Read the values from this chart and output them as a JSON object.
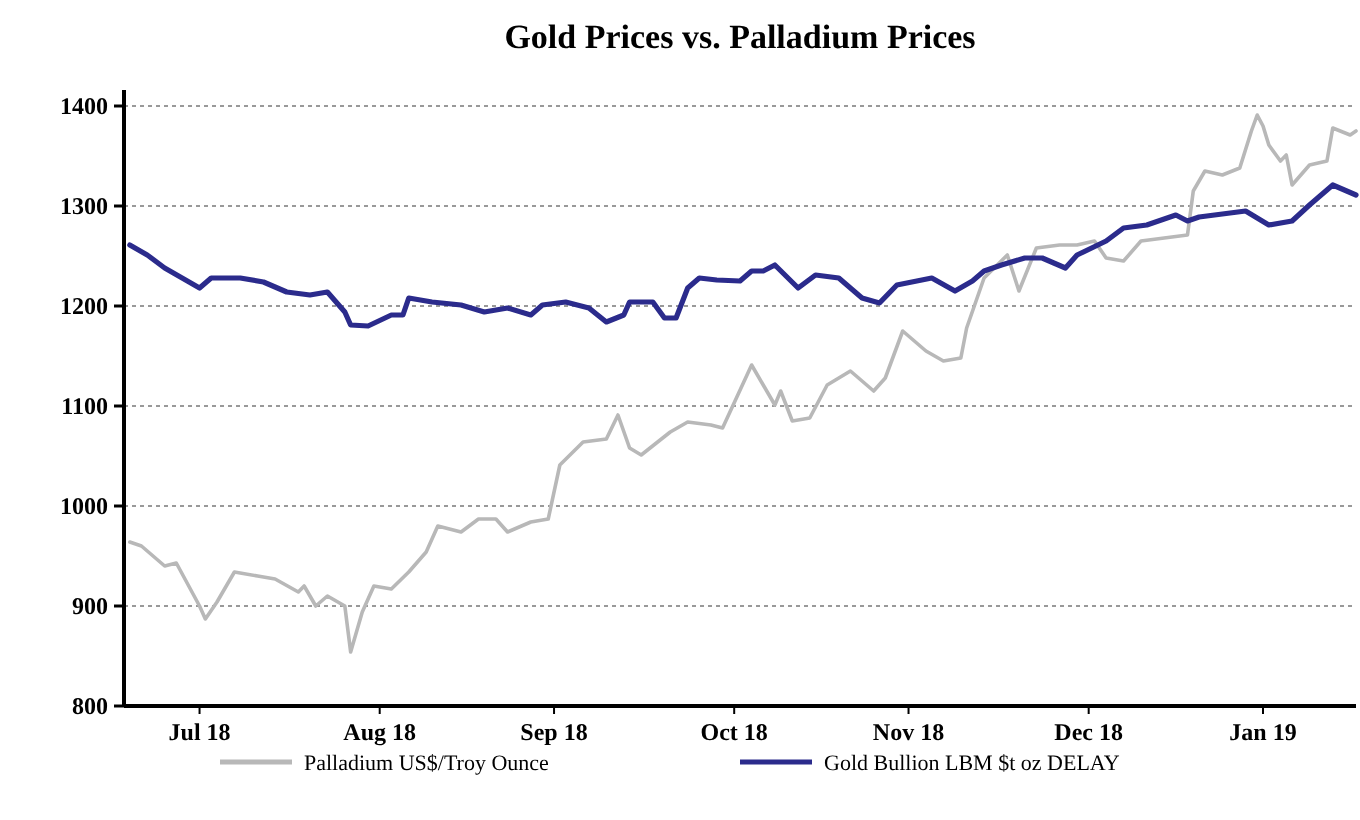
{
  "chart_data": {
    "type": "line",
    "title": "Gold Prices vs. Palladium Prices",
    "xlim": [
      "2018-07-03",
      "2019-01-31"
    ],
    "ylim": [
      800,
      1400
    ],
    "yticks": [
      800,
      900,
      1000,
      1100,
      1200,
      1300,
      1400
    ],
    "xticks": [
      {
        "value": "2018-07-16",
        "label": "Jul 18"
      },
      {
        "value": "2018-08-16",
        "label": "Aug 18"
      },
      {
        "value": "2018-09-15",
        "label": "Sep 18"
      },
      {
        "value": "2018-10-16",
        "label": "Oct 18"
      },
      {
        "value": "2018-11-15",
        "label": "Nov 18"
      },
      {
        "value": "2018-12-16",
        "label": "Dec 18"
      },
      {
        "value": "2019-01-15",
        "label": "Jan 19"
      }
    ],
    "grid": "y",
    "legend": "bottom",
    "line_style": "solid",
    "series": [
      {
        "name": "Palladium US$/Troy Ounce",
        "color": "#b8b8b8",
        "x": [
          "2018-07-04",
          "2018-07-06",
          "2018-07-10",
          "2018-07-12",
          "2018-07-16",
          "2018-07-17",
          "2018-07-19",
          "2018-07-22",
          "2018-07-26",
          "2018-07-29",
          "2018-08-02",
          "2018-08-03",
          "2018-08-05",
          "2018-08-07",
          "2018-08-10",
          "2018-08-11",
          "2018-08-13",
          "2018-08-15",
          "2018-08-18",
          "2018-08-21",
          "2018-08-24",
          "2018-08-26",
          "2018-08-30",
          "2018-09-02",
          "2018-09-05",
          "2018-09-07",
          "2018-09-11",
          "2018-09-14",
          "2018-09-16",
          "2018-09-20",
          "2018-09-24",
          "2018-09-26",
          "2018-09-28",
          "2018-09-30",
          "2018-10-05",
          "2018-10-08",
          "2018-10-12",
          "2018-10-14",
          "2018-10-19",
          "2018-10-23",
          "2018-10-24",
          "2018-10-26",
          "2018-10-29",
          "2018-11-01",
          "2018-11-05",
          "2018-11-09",
          "2018-11-11",
          "2018-11-14",
          "2018-11-18",
          "2018-11-21",
          "2018-11-24",
          "2018-11-25",
          "2018-11-28",
          "2018-12-02",
          "2018-12-04",
          "2018-12-07",
          "2018-12-11",
          "2018-12-14",
          "2018-12-17",
          "2018-12-19",
          "2018-12-22",
          "2018-12-25",
          "2018-12-29",
          "2019-01-02",
          "2019-01-03",
          "2019-01-05",
          "2019-01-08",
          "2019-01-11",
          "2019-01-13",
          "2019-01-14",
          "2019-01-15",
          "2019-01-16",
          "2019-01-18",
          "2019-01-19",
          "2019-01-20",
          "2019-01-23",
          "2019-01-26",
          "2019-01-27",
          "2019-01-30",
          "2019-01-31"
        ],
        "values": [
          964,
          960,
          940,
          943,
          900,
          887,
          904,
          934,
          930,
          927,
          914,
          920,
          900,
          910,
          900,
          854,
          894,
          920,
          917,
          934,
          954,
          980,
          974,
          987,
          987,
          974,
          984,
          987,
          1041,
          1064,
          1067,
          1091,
          1058,
          1051,
          1074,
          1084,
          1081,
          1078,
          1141,
          1101,
          1115,
          1085,
          1088,
          1121,
          1135,
          1115,
          1128,
          1175,
          1155,
          1145,
          1148,
          1178,
          1228,
          1251,
          1215,
          1258,
          1261,
          1261,
          1265,
          1248,
          1245,
          1265,
          1268,
          1271,
          1315,
          1335,
          1331,
          1338,
          1375,
          1391,
          1380,
          1361,
          1345,
          1351,
          1321,
          1341,
          1345,
          1378,
          1371,
          1375
        ]
      },
      {
        "name": "Gold Bullion LBM $t oz DELAY",
        "color": "#2b2b8c",
        "x": [
          "2018-07-04",
          "2018-07-07",
          "2018-07-10",
          "2018-07-13",
          "2018-07-16",
          "2018-07-18",
          "2018-07-23",
          "2018-07-27",
          "2018-07-31",
          "2018-08-04",
          "2018-08-07",
          "2018-08-10",
          "2018-08-11",
          "2018-08-14",
          "2018-08-18",
          "2018-08-20",
          "2018-08-21",
          "2018-08-25",
          "2018-08-30",
          "2018-09-03",
          "2018-09-07",
          "2018-09-11",
          "2018-09-13",
          "2018-09-17",
          "2018-09-21",
          "2018-09-24",
          "2018-09-27",
          "2018-09-28",
          "2018-10-02",
          "2018-10-04",
          "2018-10-06",
          "2018-10-08",
          "2018-10-10",
          "2018-10-13",
          "2018-10-17",
          "2018-10-19",
          "2018-10-21",
          "2018-10-23",
          "2018-10-27",
          "2018-10-30",
          "2018-11-03",
          "2018-11-07",
          "2018-11-10",
          "2018-11-13",
          "2018-11-19",
          "2018-11-23",
          "2018-11-26",
          "2018-11-28",
          "2018-12-01",
          "2018-12-05",
          "2018-12-08",
          "2018-12-12",
          "2018-12-14",
          "2018-12-19",
          "2018-12-22",
          "2018-12-26",
          "2018-12-31",
          "2019-01-02",
          "2019-01-04",
          "2019-01-12",
          "2019-01-16",
          "2019-01-20",
          "2019-01-23",
          "2019-01-27",
          "2019-01-31"
        ],
        "values": [
          1261,
          1251,
          1238,
          1228,
          1218,
          1228,
          1228,
          1224,
          1214,
          1211,
          1214,
          1194,
          1181,
          1180,
          1191,
          1191,
          1208,
          1204,
          1201,
          1194,
          1198,
          1191,
          1201,
          1204,
          1198,
          1184,
          1191,
          1204,
          1204,
          1188,
          1188,
          1218,
          1228,
          1226,
          1225,
          1235,
          1235,
          1241,
          1218,
          1231,
          1228,
          1208,
          1203,
          1221,
          1228,
          1215,
          1225,
          1235,
          1241,
          1248,
          1248,
          1238,
          1251,
          1265,
          1278,
          1281,
          1291,
          1285,
          1289,
          1295,
          1281,
          1285,
          1301,
          1321,
          1311
        ]
      }
    ]
  }
}
